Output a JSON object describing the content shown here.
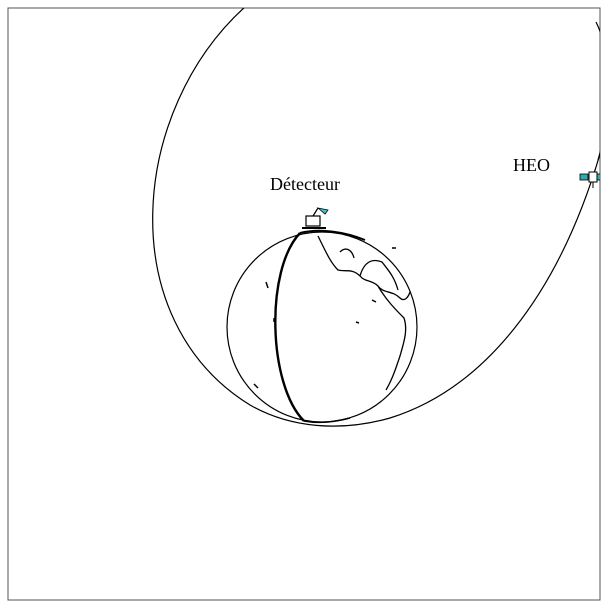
{
  "labels": {
    "detector": "Détecteur",
    "satellite": "HEO"
  }
}
